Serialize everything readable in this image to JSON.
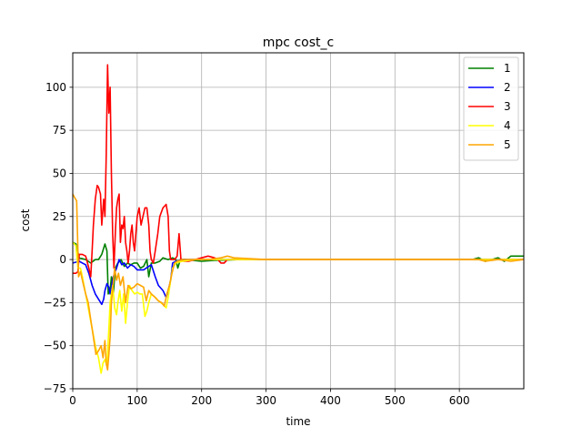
{
  "chart_data": {
    "type": "line",
    "title": "mpc cost_c",
    "xlabel": "time",
    "ylabel": "cost",
    "xlim": [
      0,
      700
    ],
    "ylim": [
      -75,
      120
    ],
    "xticks": [
      0,
      100,
      200,
      300,
      400,
      500,
      600
    ],
    "yticks": [
      -75,
      -50,
      -25,
      0,
      25,
      50,
      75,
      100
    ],
    "grid": true,
    "legend_position": "top-right",
    "series": [
      {
        "name": "1",
        "color": "#008000",
        "points": [
          [
            0,
            10
          ],
          [
            5,
            9
          ],
          [
            10,
            1
          ],
          [
            20,
            0
          ],
          [
            28,
            -2
          ],
          [
            35,
            0
          ],
          [
            40,
            0
          ],
          [
            45,
            3
          ],
          [
            50,
            9
          ],
          [
            53,
            5
          ],
          [
            55,
            -20
          ],
          [
            58,
            -18
          ],
          [
            60,
            -10
          ],
          [
            63,
            -20
          ],
          [
            66,
            -5
          ],
          [
            70,
            -2
          ],
          [
            75,
            0
          ],
          [
            80,
            -4
          ],
          [
            85,
            -2
          ],
          [
            90,
            -3
          ],
          [
            95,
            -2
          ],
          [
            100,
            -2
          ],
          [
            105,
            -5
          ],
          [
            110,
            -4
          ],
          [
            115,
            0
          ],
          [
            118,
            -10
          ],
          [
            122,
            -2
          ],
          [
            128,
            -2
          ],
          [
            135,
            -1
          ],
          [
            140,
            1
          ],
          [
            148,
            0
          ],
          [
            155,
            1
          ],
          [
            160,
            0
          ],
          [
            163,
            -5
          ],
          [
            167,
            0
          ],
          [
            175,
            0
          ],
          [
            200,
            -1
          ],
          [
            220,
            -0.5
          ],
          [
            260,
            0
          ],
          [
            300,
            0
          ],
          [
            400,
            0
          ],
          [
            500,
            0
          ],
          [
            620,
            0
          ],
          [
            630,
            1
          ],
          [
            640,
            -1
          ],
          [
            650,
            0
          ],
          [
            660,
            1
          ],
          [
            670,
            -1
          ],
          [
            680,
            2
          ],
          [
            690,
            2
          ],
          [
            700,
            2
          ]
        ]
      },
      {
        "name": "2",
        "color": "#0000ff",
        "points": [
          [
            0,
            -2
          ],
          [
            10,
            -1
          ],
          [
            15,
            -2
          ],
          [
            20,
            -3
          ],
          [
            25,
            -8
          ],
          [
            30,
            -15
          ],
          [
            35,
            -20
          ],
          [
            40,
            -23
          ],
          [
            45,
            -26
          ],
          [
            48,
            -23
          ],
          [
            50,
            -18
          ],
          [
            53,
            -14
          ],
          [
            56,
            -16
          ],
          [
            58,
            -20
          ],
          [
            60,
            -16
          ],
          [
            63,
            -10
          ],
          [
            68,
            -5
          ],
          [
            72,
            0
          ],
          [
            76,
            -3
          ],
          [
            80,
            -2
          ],
          [
            85,
            -5
          ],
          [
            90,
            -3
          ],
          [
            95,
            -4
          ],
          [
            100,
            -6
          ],
          [
            110,
            -6
          ],
          [
            118,
            -4
          ],
          [
            122,
            -3
          ],
          [
            128,
            -10
          ],
          [
            133,
            -15
          ],
          [
            140,
            -18
          ],
          [
            145,
            -22
          ],
          [
            148,
            -18
          ],
          [
            152,
            -12
          ],
          [
            155,
            -2
          ],
          [
            160,
            -1
          ],
          [
            170,
            0
          ],
          [
            200,
            0
          ],
          [
            300,
            0
          ],
          [
            400,
            0
          ],
          [
            500,
            0
          ],
          [
            600,
            0
          ],
          [
            650,
            0
          ],
          [
            700,
            0
          ]
        ]
      },
      {
        "name": "3",
        "color": "#ff0000",
        "points": [
          [
            0,
            -8
          ],
          [
            5,
            -8
          ],
          [
            8,
            -7
          ],
          [
            10,
            3
          ],
          [
            15,
            3
          ],
          [
            20,
            2
          ],
          [
            25,
            -5
          ],
          [
            28,
            -10
          ],
          [
            30,
            5
          ],
          [
            32,
            20
          ],
          [
            35,
            35
          ],
          [
            38,
            43
          ],
          [
            40,
            42
          ],
          [
            43,
            38
          ],
          [
            45,
            20
          ],
          [
            48,
            35
          ],
          [
            50,
            25
          ],
          [
            52,
            60
          ],
          [
            54,
            113
          ],
          [
            56,
            85
          ],
          [
            58,
            100
          ],
          [
            60,
            50
          ],
          [
            62,
            15
          ],
          [
            64,
            -5
          ],
          [
            66,
            15
          ],
          [
            68,
            30
          ],
          [
            70,
            35
          ],
          [
            72,
            38
          ],
          [
            74,
            10
          ],
          [
            76,
            20
          ],
          [
            78,
            18
          ],
          [
            80,
            25
          ],
          [
            82,
            10
          ],
          [
            84,
            5
          ],
          [
            86,
            -2
          ],
          [
            88,
            5
          ],
          [
            90,
            15
          ],
          [
            92,
            20
          ],
          [
            94,
            10
          ],
          [
            96,
            5
          ],
          [
            98,
            15
          ],
          [
            100,
            25
          ],
          [
            103,
            30
          ],
          [
            106,
            20
          ],
          [
            109,
            25
          ],
          [
            112,
            30
          ],
          [
            115,
            30
          ],
          [
            118,
            20
          ],
          [
            120,
            5
          ],
          [
            122,
            0
          ],
          [
            125,
            -2
          ],
          [
            128,
            5
          ],
          [
            132,
            15
          ],
          [
            135,
            25
          ],
          [
            140,
            30
          ],
          [
            145,
            32
          ],
          [
            148,
            25
          ],
          [
            150,
            5
          ],
          [
            152,
            0
          ],
          [
            158,
            0
          ],
          [
            162,
            2
          ],
          [
            165,
            15
          ],
          [
            168,
            0
          ],
          [
            172,
            -1
          ],
          [
            180,
            -1
          ],
          [
            190,
            0
          ],
          [
            200,
            1
          ],
          [
            210,
            2
          ],
          [
            220,
            1
          ],
          [
            225,
            0
          ],
          [
            230,
            -2
          ],
          [
            235,
            -2
          ],
          [
            240,
            0
          ],
          [
            260,
            0
          ],
          [
            300,
            0
          ],
          [
            400,
            0
          ],
          [
            500,
            0
          ],
          [
            600,
            0
          ],
          [
            700,
            0
          ]
        ]
      },
      {
        "name": "4",
        "color": "#ffff00",
        "points": [
          [
            0,
            10
          ],
          [
            5,
            8
          ],
          [
            8,
            -5
          ],
          [
            12,
            -5
          ],
          [
            15,
            -10
          ],
          [
            20,
            -20
          ],
          [
            25,
            -30
          ],
          [
            30,
            -40
          ],
          [
            35,
            -50
          ],
          [
            40,
            -57
          ],
          [
            44,
            -66
          ],
          [
            47,
            -60
          ],
          [
            50,
            -58
          ],
          [
            53,
            -62
          ],
          [
            56,
            -40
          ],
          [
            58,
            -25
          ],
          [
            60,
            -20
          ],
          [
            62,
            -15
          ],
          [
            65,
            -28
          ],
          [
            68,
            -32
          ],
          [
            70,
            -25
          ],
          [
            73,
            -18
          ],
          [
            76,
            -30
          ],
          [
            79,
            -20
          ],
          [
            82,
            -37
          ],
          [
            85,
            -25
          ],
          [
            88,
            -15
          ],
          [
            92,
            -18
          ],
          [
            96,
            -20
          ],
          [
            100,
            -19
          ],
          [
            104,
            -20
          ],
          [
            108,
            -20
          ],
          [
            112,
            -33
          ],
          [
            115,
            -30
          ],
          [
            118,
            -25
          ],
          [
            122,
            -20
          ],
          [
            128,
            -22
          ],
          [
            133,
            -24
          ],
          [
            140,
            -26
          ],
          [
            145,
            -28
          ],
          [
            148,
            -22
          ],
          [
            152,
            -12
          ],
          [
            155,
            -5
          ],
          [
            160,
            -2
          ],
          [
            170,
            -1
          ],
          [
            190,
            0
          ],
          [
            200,
            0
          ],
          [
            300,
            0
          ],
          [
            400,
            0
          ],
          [
            500,
            0
          ],
          [
            600,
            0
          ],
          [
            700,
            0
          ]
        ]
      },
      {
        "name": "5",
        "color": "#ffa500",
        "points": [
          [
            0,
            38
          ],
          [
            3,
            36
          ],
          [
            6,
            34
          ],
          [
            9,
            -10
          ],
          [
            12,
            -7
          ],
          [
            15,
            -12
          ],
          [
            20,
            -20
          ],
          [
            24,
            -25
          ],
          [
            28,
            -35
          ],
          [
            32,
            -45
          ],
          [
            36,
            -55
          ],
          [
            40,
            -53
          ],
          [
            44,
            -50
          ],
          [
            47,
            -57
          ],
          [
            50,
            -47
          ],
          [
            52,
            -60
          ],
          [
            54,
            -64
          ],
          [
            56,
            -55
          ],
          [
            58,
            -45
          ],
          [
            60,
            -25
          ],
          [
            62,
            -17
          ],
          [
            65,
            -5
          ],
          [
            68,
            -12
          ],
          [
            71,
            -8
          ],
          [
            74,
            -15
          ],
          [
            78,
            -10
          ],
          [
            82,
            -25
          ],
          [
            86,
            -15
          ],
          [
            90,
            -17
          ],
          [
            95,
            -16
          ],
          [
            100,
            -14
          ],
          [
            105,
            -15
          ],
          [
            110,
            -16
          ],
          [
            114,
            -24
          ],
          [
            118,
            -18
          ],
          [
            122,
            -20
          ],
          [
            128,
            -22
          ],
          [
            133,
            -24
          ],
          [
            138,
            -25
          ],
          [
            142,
            -27
          ],
          [
            146,
            -20
          ],
          [
            150,
            -15
          ],
          [
            154,
            -8
          ],
          [
            158,
            -2
          ],
          [
            162,
            -1
          ],
          [
            170,
            0
          ],
          [
            190,
            0
          ],
          [
            210,
            0
          ],
          [
            230,
            1
          ],
          [
            240,
            2
          ],
          [
            250,
            1
          ],
          [
            300,
            0
          ],
          [
            400,
            0
          ],
          [
            500,
            0
          ],
          [
            600,
            0
          ],
          [
            630,
            0
          ],
          [
            640,
            -1
          ],
          [
            660,
            0
          ],
          [
            680,
            -1
          ],
          [
            700,
            0
          ]
        ]
      }
    ]
  }
}
